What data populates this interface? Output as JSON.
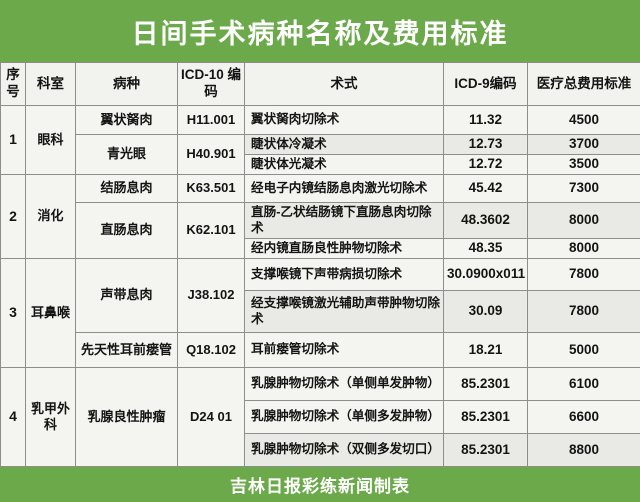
{
  "title": "日间手术病种名称及费用标准",
  "footer_credit": "吉林日报彩练新闻制表",
  "colors": {
    "band_green": "#6ba94a",
    "cell_bg": "#f4f4f1",
    "cell_shade": "#e9eae5",
    "grid_line": "#8d8d8d",
    "title_text": "#ffffff"
  },
  "table": {
    "headers": [
      "序号",
      "科室",
      "病种",
      "ICD-10 编码",
      "术式",
      "ICD-9编码",
      "医疗总费用标准"
    ],
    "groups": [
      {
        "no": "1",
        "dept": "眼科",
        "diseases": [
          {
            "name": "翼状胬肉",
            "icd10": "H11.001",
            "ops": [
              {
                "name": "翼状胬肉切除术",
                "icd9": "11.32",
                "fee": "4500"
              }
            ]
          },
          {
            "name": "青光眼",
            "icd10": "H40.901",
            "ops": [
              {
                "name": "睫状体冷凝术",
                "icd9": "12.73",
                "fee": "3700"
              },
              {
                "name": "睫状体光凝术",
                "icd9": "12.72",
                "fee": "3500"
              }
            ]
          }
        ]
      },
      {
        "no": "2",
        "dept": "消化",
        "diseases": [
          {
            "name": "结肠息肉",
            "icd10": "K63.501",
            "ops": [
              {
                "name": "经电子内镜结肠息肉激光切除术",
                "icd9": "45.42",
                "fee": "7300"
              }
            ]
          },
          {
            "name": "直肠息肉",
            "icd10": "K62.101",
            "ops": [
              {
                "name": "直肠-乙状结肠镜下直肠息肉切除术",
                "icd9": "48.3602",
                "fee": "8000"
              },
              {
                "name": "经内镜直肠良性肿物切除术",
                "icd9": "48.35",
                "fee": "8000"
              }
            ]
          }
        ]
      },
      {
        "no": "3",
        "dept": "耳鼻喉",
        "diseases": [
          {
            "name": "声带息肉",
            "icd10": "J38.102",
            "ops": [
              {
                "name": "支撑喉镜下声带病损切除术",
                "icd9": "30.0900x011",
                "fee": "7800"
              },
              {
                "name": "经支撑喉镜激光辅助声带肿物切除术",
                "icd9": "30.09",
                "fee": "7800"
              }
            ]
          },
          {
            "name": "先天性耳前瘘管",
            "icd10": "Q18.102",
            "ops": [
              {
                "name": "耳前瘘管切除术",
                "icd9": "18.21",
                "fee": "5000"
              }
            ]
          }
        ]
      },
      {
        "no": "4",
        "dept": "乳甲外科",
        "diseases": [
          {
            "name": "乳腺良性肿瘤",
            "icd10": "D24 01",
            "ops": [
              {
                "name": "乳腺肿物切除术（单侧单发肿物）",
                "icd9": "85.2301",
                "fee": "6100"
              },
              {
                "name": "乳腺肿物切除术（单侧多发肿物）",
                "icd9": "85.2301",
                "fee": "6600"
              },
              {
                "name": "乳腺肿物切除术（双侧多发切口）",
                "icd9": "85.2301",
                "fee": "8800"
              }
            ]
          }
        ]
      }
    ]
  },
  "chart_data": {
    "type": "table",
    "title": "日间手术病种名称及费用标准",
    "columns": [
      "序号",
      "科室",
      "病种",
      "ICD-10编码",
      "术式",
      "ICD-9编码",
      "医疗总费用标准"
    ],
    "rows": [
      [
        "1",
        "眼科",
        "翼状胬肉",
        "H11.001",
        "翼状胬肉切除术",
        "11.32",
        4500
      ],
      [
        "1",
        "眼科",
        "青光眼",
        "H40.901",
        "睫状体冷凝术",
        "12.73",
        3700
      ],
      [
        "1",
        "眼科",
        "青光眼",
        "H40.901",
        "睫状体光凝术",
        "12.72",
        3500
      ],
      [
        "2",
        "消化",
        "结肠息肉",
        "K63.501",
        "经电子内镜结肠息肉激光切除术",
        "45.42",
        7300
      ],
      [
        "2",
        "消化",
        "直肠息肉",
        "K62.101",
        "直肠-乙状结肠镜下直肠息肉切除术",
        "48.3602",
        8000
      ],
      [
        "2",
        "消化",
        "直肠息肉",
        "K62.101",
        "经内镜直肠良性肿物切除术",
        "48.35",
        8000
      ],
      [
        "3",
        "耳鼻喉",
        "声带息肉",
        "J38.102",
        "支撑喉镜下声带病损切除术",
        "30.0900x011",
        7800
      ],
      [
        "3",
        "耳鼻喉",
        "声带息肉",
        "J38.102",
        "经支撑喉镜激光辅助声带肿物切除术",
        "30.09",
        7800
      ],
      [
        "3",
        "耳鼻喉",
        "先天性耳前瘘管",
        "Q18.102",
        "耳前瘘管切除术",
        "18.21",
        5000
      ],
      [
        "4",
        "乳甲外科",
        "乳腺良性肿瘤",
        "D24 01",
        "乳腺肿物切除术（单侧单发肿物）",
        "85.2301",
        6100
      ],
      [
        "4",
        "乳甲外科",
        "乳腺良性肿瘤",
        "D24 01",
        "乳腺肿物切除术（单侧多发肿物）",
        "85.2301",
        6600
      ],
      [
        "4",
        "乳甲外科",
        "乳腺良性肿瘤",
        "D24 01",
        "乳腺肿物切除术（双侧多发切口）",
        "85.2301",
        8800
      ]
    ]
  }
}
